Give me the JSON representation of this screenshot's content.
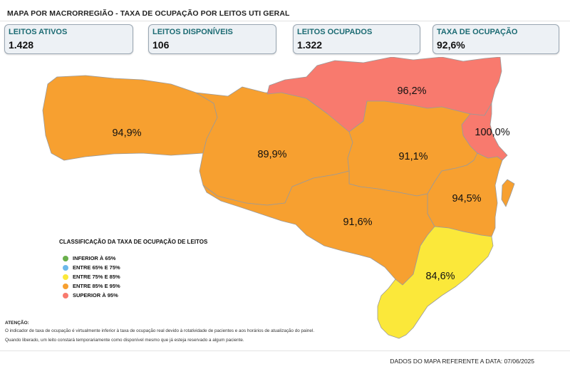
{
  "title": "MAPA POR MACRORREGIÃO - TAXA DE OCUPAÇÃO POR LEITOS UTI GERAL",
  "cards": [
    {
      "label": "LEITOS ATIVOS",
      "value": "1.428"
    },
    {
      "label": "LEITOS DISPONÍVEIS",
      "value": "106"
    },
    {
      "label": "LEITOS OCUPADOS",
      "value": "1.322"
    },
    {
      "label": "TAXA DE OCUPAÇÃO",
      "value": "92,6%"
    }
  ],
  "regions": [
    {
      "id": "extremo-oeste",
      "value_label": "94,9%",
      "rate": 94.9,
      "color": "#f7a030"
    },
    {
      "id": "meio-oeste-serra",
      "value_label": "89,9%",
      "rate": 89.9,
      "color": "#f7a030"
    },
    {
      "id": "norte",
      "value_label": "96,2%",
      "rate": 96.2,
      "color": "#f87a6e"
    },
    {
      "id": "foz-itajai",
      "value_label": "100,0%",
      "rate": 100.0,
      "color": "#f87a6e"
    },
    {
      "id": "vale-itajai",
      "value_label": "91,1%",
      "rate": 91.1,
      "color": "#f7a030"
    },
    {
      "id": "grande-florianopolis",
      "value_label": "94,5%",
      "rate": 94.5,
      "color": "#f7a030"
    },
    {
      "id": "planalto-serrano",
      "value_label": "91,6%",
      "rate": 91.6,
      "color": "#f7a030"
    },
    {
      "id": "sul",
      "value_label": "84,6%",
      "rate": 84.6,
      "color": "#fbe83a"
    }
  ],
  "legend": {
    "title": "CLASSIFICAÇÃO DA TAXA DE OCUPAÇÃO DE LEITOS",
    "items": [
      {
        "label": "INFERIOR À 65%",
        "color": "#6ab04c"
      },
      {
        "label": "ENTRE 65% E 75%",
        "color": "#6cb8ea"
      },
      {
        "label": "ENTRE 75% E 85%",
        "color": "#fbe83a"
      },
      {
        "label": "ENTRE 85% E 95%",
        "color": "#f7a030"
      },
      {
        "label": "SUPERIOR À 95%",
        "color": "#f87a6e"
      }
    ]
  },
  "notes": {
    "title": "ATENÇÃO:",
    "line1": "O indicador de taxa de ocupação é virtualmente inferior à taxa de ocupação real devido à rotatividade de pacientes e aos horários de atualização do painel.",
    "line2": "Quando liberado, um leito constará temporariamente como disponível mesmo que já esteja reservado a algum paciente."
  },
  "footer": {
    "date_text": "DADOS DO MAPA REFERENTE A DATA: 07/06/2025"
  }
}
